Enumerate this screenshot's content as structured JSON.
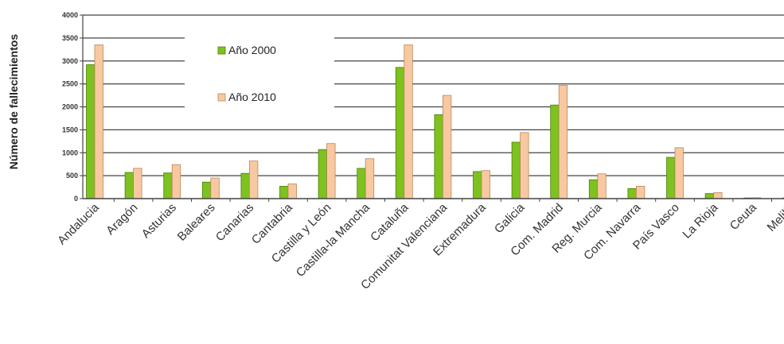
{
  "chart_data": {
    "type": "bar",
    "ylabel": "Número de fallecimientos",
    "xlabel": "",
    "ylim": [
      0,
      4000
    ],
    "yticks": [
      0,
      500,
      1000,
      1500,
      2000,
      2500,
      3000,
      3500,
      4000
    ],
    "grid": true,
    "legend_position": "top-center",
    "categories": [
      "Andalucia",
      "Aragón",
      "Asturias",
      "Baleares",
      "Canarias",
      "Cantabria",
      "Castilla y León",
      "Castilla-la Mancha",
      "Cataluña",
      "Comunitat Valenciana",
      "Extremadura",
      "Galicia",
      "Com. Madrid",
      "Reg. Murcia",
      "Com. Navarra",
      "País Vasco",
      "La Rioja",
      "Ceuta",
      "Melilla"
    ],
    "series": [
      {
        "name": "Año 2000",
        "color": "#7dc21e",
        "values": [
          2920,
          570,
          560,
          360,
          550,
          270,
          1070,
          660,
          2860,
          1830,
          590,
          1230,
          2040,
          410,
          220,
          900,
          110,
          15,
          15
        ]
      },
      {
        "name": "Año 2010",
        "color": "#f8c9a0",
        "values": [
          3350,
          660,
          740,
          450,
          820,
          320,
          1200,
          870,
          3350,
          2250,
          610,
          1440,
          2470,
          540,
          270,
          1110,
          130,
          20,
          20
        ]
      }
    ]
  }
}
